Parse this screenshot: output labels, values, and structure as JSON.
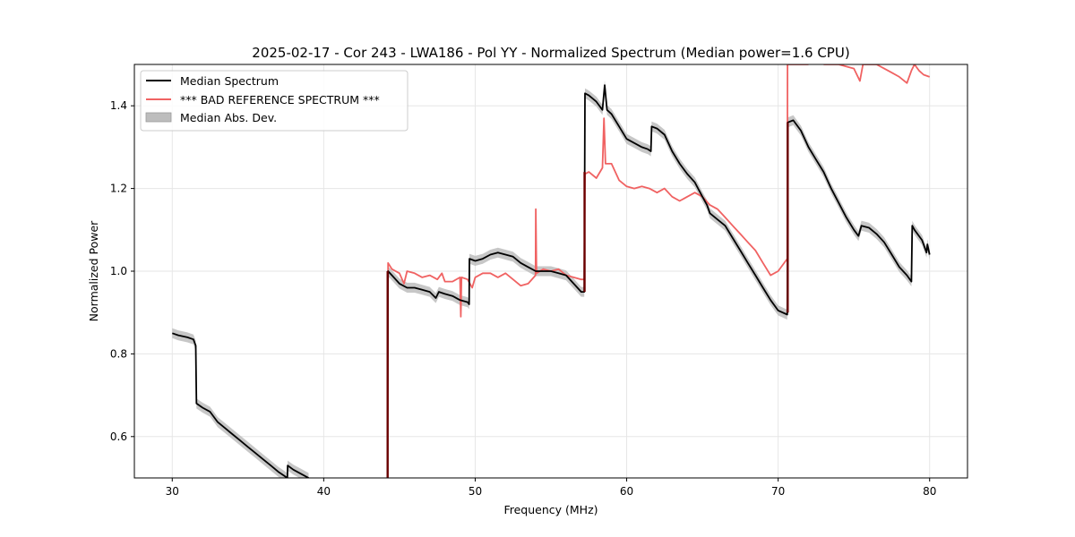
{
  "chart_data": {
    "type": "line",
    "title": "2025-02-17 - Cor 243 - LWA186 - Pol YY - Normalized Spectrum (Median power=1.6 CPU)",
    "xlabel": "Frequency (MHz)",
    "ylabel": "Normalized Power",
    "xlim": [
      27.5,
      82.5
    ],
    "ylim": [
      0.5,
      1.5
    ],
    "xticks": [
      30,
      40,
      50,
      60,
      70,
      80
    ],
    "yticks": [
      0.6,
      0.8,
      1.0,
      1.2,
      1.4
    ],
    "grid": true,
    "legend_position": "upper-left",
    "legend": [
      "Median Spectrum",
      "*** BAD REFERENCE SPECTRUM ***",
      "Median Abs. Dev."
    ],
    "colors": {
      "median": "#000000",
      "reference": "#f06262",
      "mad": "#bdbdbd",
      "overlap": "#6b0000"
    },
    "series": [
      {
        "name": "Median Spectrum",
        "points": [
          [
            30.0,
            0.85
          ],
          [
            30.4,
            0.845
          ],
          [
            31.0,
            0.84
          ],
          [
            31.4,
            0.835
          ],
          [
            31.55,
            0.82
          ],
          [
            31.6,
            0.68
          ],
          [
            32.0,
            0.67
          ],
          [
            32.5,
            0.66
          ],
          [
            33.0,
            0.635
          ],
          [
            33.5,
            0.62
          ],
          [
            34.0,
            0.605
          ],
          [
            34.5,
            0.59
          ],
          [
            35.0,
            0.575
          ],
          [
            35.5,
            0.56
          ],
          [
            36.0,
            0.545
          ],
          [
            36.5,
            0.53
          ],
          [
            37.0,
            0.515
          ],
          [
            37.6,
            0.5
          ],
          [
            37.62,
            0.53
          ],
          [
            38.0,
            0.52
          ],
          [
            38.5,
            0.51
          ],
          [
            39.0,
            0.5
          ],
          [
            44.2,
            0.5
          ],
          [
            44.25,
            1.0
          ],
          [
            44.5,
            0.99
          ],
          [
            45.0,
            0.97
          ],
          [
            45.5,
            0.96
          ],
          [
            46.0,
            0.96
          ],
          [
            46.5,
            0.955
          ],
          [
            47.0,
            0.95
          ],
          [
            47.4,
            0.935
          ],
          [
            47.6,
            0.95
          ],
          [
            48.0,
            0.945
          ],
          [
            48.5,
            0.94
          ],
          [
            49.0,
            0.93
          ],
          [
            49.5,
            0.925
          ],
          [
            49.6,
            0.92
          ],
          [
            49.62,
            1.03
          ],
          [
            50.0,
            1.025
          ],
          [
            50.5,
            1.03
          ],
          [
            51.0,
            1.04
          ],
          [
            51.5,
            1.045
          ],
          [
            52.0,
            1.04
          ],
          [
            52.5,
            1.035
          ],
          [
            53.0,
            1.02
          ],
          [
            53.5,
            1.01
          ],
          [
            54.0,
            1.0
          ],
          [
            54.5,
            1.0
          ],
          [
            55.0,
            1.0
          ],
          [
            55.5,
            0.995
          ],
          [
            56.0,
            0.99
          ],
          [
            56.5,
            0.97
          ],
          [
            57.0,
            0.95
          ],
          [
            57.2,
            0.95
          ],
          [
            57.25,
            1.43
          ],
          [
            57.5,
            1.425
          ],
          [
            58.0,
            1.41
          ],
          [
            58.4,
            1.39
          ],
          [
            58.55,
            1.45
          ],
          [
            58.7,
            1.39
          ],
          [
            59.0,
            1.38
          ],
          [
            59.5,
            1.35
          ],
          [
            60.0,
            1.32
          ],
          [
            60.5,
            1.31
          ],
          [
            61.0,
            1.3
          ],
          [
            61.4,
            1.295
          ],
          [
            61.6,
            1.29
          ],
          [
            61.65,
            1.35
          ],
          [
            62.0,
            1.345
          ],
          [
            62.5,
            1.33
          ],
          [
            63.0,
            1.29
          ],
          [
            63.5,
            1.26
          ],
          [
            64.0,
            1.235
          ],
          [
            64.5,
            1.215
          ],
          [
            65.0,
            1.18
          ],
          [
            65.3,
            1.16
          ],
          [
            65.5,
            1.14
          ],
          [
            66.0,
            1.125
          ],
          [
            66.5,
            1.11
          ],
          [
            67.0,
            1.08
          ],
          [
            67.5,
            1.05
          ],
          [
            68.0,
            1.02
          ],
          [
            68.5,
            0.99
          ],
          [
            69.0,
            0.96
          ],
          [
            69.5,
            0.93
          ],
          [
            70.0,
            0.905
          ],
          [
            70.6,
            0.895
          ],
          [
            70.65,
            1.36
          ],
          [
            71.0,
            1.365
          ],
          [
            71.5,
            1.34
          ],
          [
            72.0,
            1.3
          ],
          [
            72.5,
            1.27
          ],
          [
            73.0,
            1.24
          ],
          [
            73.5,
            1.2
          ],
          [
            74.0,
            1.165
          ],
          [
            74.5,
            1.13
          ],
          [
            75.0,
            1.1
          ],
          [
            75.3,
            1.085
          ],
          [
            75.5,
            1.11
          ],
          [
            76.0,
            1.105
          ],
          [
            76.5,
            1.09
          ],
          [
            77.0,
            1.07
          ],
          [
            77.5,
            1.04
          ],
          [
            78.0,
            1.01
          ],
          [
            78.5,
            0.99
          ],
          [
            78.8,
            0.975
          ],
          [
            78.85,
            1.11
          ],
          [
            79.0,
            1.1
          ],
          [
            79.5,
            1.075
          ],
          [
            79.8,
            1.045
          ],
          [
            79.85,
            1.065
          ],
          [
            80.0,
            1.04
          ]
        ]
      },
      {
        "name": "*** BAD REFERENCE SPECTRUM ***",
        "points": [
          [
            44.2,
            0.5
          ],
          [
            44.25,
            1.02
          ],
          [
            44.5,
            1.005
          ],
          [
            45.0,
            0.995
          ],
          [
            45.3,
            0.97
          ],
          [
            45.5,
            1.0
          ],
          [
            46.0,
            0.995
          ],
          [
            46.5,
            0.985
          ],
          [
            47.0,
            0.99
          ],
          [
            47.5,
            0.98
          ],
          [
            47.8,
            0.995
          ],
          [
            48.0,
            0.975
          ],
          [
            48.5,
            0.975
          ],
          [
            49.0,
            0.985
          ],
          [
            49.05,
            0.89
          ],
          [
            49.1,
            0.985
          ],
          [
            49.5,
            0.98
          ],
          [
            49.8,
            0.96
          ],
          [
            50.0,
            0.985
          ],
          [
            50.5,
            0.995
          ],
          [
            51.0,
            0.995
          ],
          [
            51.5,
            0.985
          ],
          [
            52.0,
            0.995
          ],
          [
            52.5,
            0.98
          ],
          [
            53.0,
            0.965
          ],
          [
            53.5,
            0.97
          ],
          [
            53.98,
            0.99
          ],
          [
            54.0,
            1.15
          ],
          [
            54.05,
            0.995
          ],
          [
            54.5,
            1.005
          ],
          [
            55.0,
            1.0
          ],
          [
            55.5,
            1.005
          ],
          [
            56.0,
            0.99
          ],
          [
            56.5,
            0.985
          ],
          [
            57.0,
            0.98
          ],
          [
            57.2,
            0.98
          ],
          [
            57.25,
            1.235
          ],
          [
            57.5,
            1.24
          ],
          [
            58.0,
            1.225
          ],
          [
            58.4,
            1.25
          ],
          [
            58.5,
            1.37
          ],
          [
            58.6,
            1.26
          ],
          [
            59.0,
            1.26
          ],
          [
            59.5,
            1.22
          ],
          [
            60.0,
            1.205
          ],
          [
            60.5,
            1.2
          ],
          [
            61.0,
            1.205
          ],
          [
            61.5,
            1.2
          ],
          [
            62.0,
            1.19
          ],
          [
            62.5,
            1.2
          ],
          [
            63.0,
            1.18
          ],
          [
            63.5,
            1.17
          ],
          [
            64.0,
            1.18
          ],
          [
            64.5,
            1.19
          ],
          [
            65.0,
            1.18
          ],
          [
            65.5,
            1.16
          ],
          [
            66.0,
            1.15
          ],
          [
            66.5,
            1.13
          ],
          [
            67.0,
            1.11
          ],
          [
            67.5,
            1.09
          ],
          [
            68.0,
            1.07
          ],
          [
            68.5,
            1.05
          ],
          [
            69.0,
            1.02
          ],
          [
            69.5,
            0.99
          ],
          [
            70.0,
            1.0
          ],
          [
            70.6,
            1.03
          ],
          [
            70.62,
            1.5
          ],
          [
            72.0,
            1.5
          ]
        ]
      },
      {
        "name": "*** BAD REFERENCE SPECTRUM ***",
        "points": [
          [
            73.0,
            1.5
          ],
          [
            74.0,
            1.5
          ],
          [
            75.0,
            1.49
          ],
          [
            75.4,
            1.46
          ],
          [
            75.6,
            1.5
          ],
          [
            76.5,
            1.5
          ],
          [
            77.0,
            1.49
          ],
          [
            77.5,
            1.48
          ],
          [
            78.0,
            1.47
          ],
          [
            78.5,
            1.455
          ],
          [
            78.8,
            1.485
          ],
          [
            79.0,
            1.5
          ],
          [
            79.3,
            1.485
          ],
          [
            79.6,
            1.475
          ],
          [
            80.0,
            1.47
          ]
        ]
      }
    ]
  }
}
